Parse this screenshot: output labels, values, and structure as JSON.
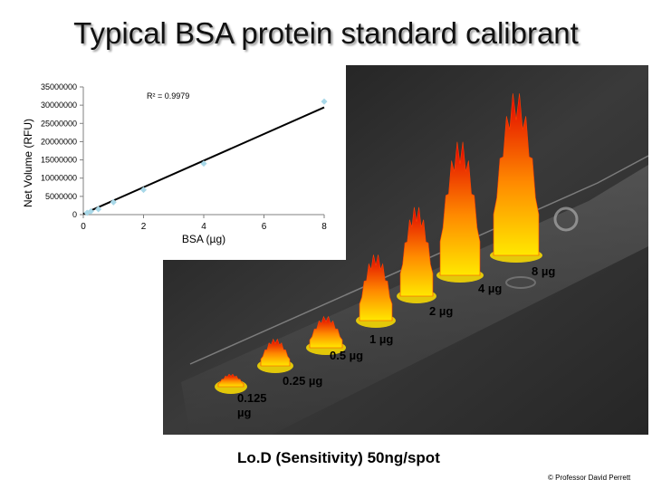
{
  "title": "Typical BSA protein standard calibrant",
  "chart_data": {
    "type": "scatter",
    "xlabel": "BSA (µg)",
    "ylabel": "Net Volume (RFU)",
    "xlim": [
      0,
      8
    ],
    "ylim": [
      0,
      35000000
    ],
    "xticks": [
      "0",
      "2",
      "4",
      "6",
      "8"
    ],
    "yticks": [
      "0",
      "5000000",
      "10000000",
      "15000000",
      "20000000",
      "25000000",
      "30000000",
      "35000000"
    ],
    "annotation": "R² = 0.9979",
    "grid": false,
    "points": [
      {
        "x": 0.125,
        "y": 500000
      },
      {
        "x": 0.25,
        "y": 900000
      },
      {
        "x": 0.5,
        "y": 1500000
      },
      {
        "x": 1,
        "y": 3400000
      },
      {
        "x": 2,
        "y": 6800000
      },
      {
        "x": 4,
        "y": 14000000
      },
      {
        "x": 8,
        "y": 31000000
      }
    ],
    "trendline": {
      "slope": 3650000,
      "intercept": 200000
    }
  },
  "peak_labels": [
    "8 µg",
    "4 µg",
    "2 µg",
    "1 µg",
    "0.5 µg",
    "0.25 µg",
    "0.125",
    "µg"
  ],
  "lod_text": "Lo.D (Sensitivity)   50ng/spot",
  "copyright": "© Professor David Perrett",
  "colors": {
    "photo_bg": "#2e2e2e",
    "peak_high": "#e00000",
    "peak_low": "#ffe000",
    "line": "#000000",
    "point": "#a8d8e8"
  }
}
